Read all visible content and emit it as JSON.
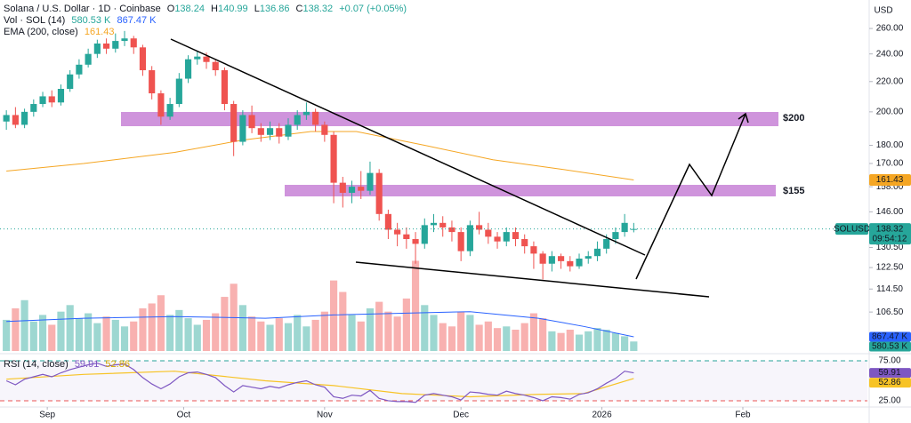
{
  "chart_data": [
    {
      "type": "candlestick",
      "title": "Solana / U.S. Dollar · 1D · Coinbase",
      "axis_label": "USD",
      "symbol": "SOLUSD",
      "countdown": "09:54:12",
      "ohlc_labels": [
        "O",
        "H",
        "L",
        "C"
      ],
      "change": "+0.07 (+0.05%)",
      "up_color": "#26a69a",
      "down_color": "#ef5350",
      "x": [
        3,
        5,
        7,
        9,
        11,
        13,
        15,
        17,
        19,
        21,
        23,
        25,
        27,
        29,
        31,
        33,
        35,
        37,
        39,
        41,
        43,
        45,
        47,
        49,
        51,
        53,
        55,
        57,
        59,
        61,
        63,
        65,
        67,
        69,
        71,
        73,
        75,
        77,
        79,
        81,
        83,
        85,
        87,
        89,
        91,
        93,
        95,
        97,
        99,
        101,
        103,
        105,
        107,
        109,
        111,
        113,
        115,
        117,
        119,
        121,
        123,
        125,
        127,
        129,
        131,
        133,
        135,
        137,
        139,
        141
      ],
      "ohlc": [
        [
          194,
          201,
          189,
          198
        ],
        [
          198,
          203,
          190,
          192
        ],
        [
          192,
          202,
          190,
          200
        ],
        [
          200,
          208,
          197,
          205
        ],
        [
          205,
          213,
          203,
          210
        ],
        [
          210,
          214,
          203,
          206
        ],
        [
          206,
          218,
          204,
          215
        ],
        [
          215,
          228,
          213,
          225
        ],
        [
          225,
          236,
          222,
          232
        ],
        [
          232,
          244,
          230,
          240
        ],
        [
          240,
          251,
          237,
          248
        ],
        [
          248,
          252,
          240,
          244
        ],
        [
          244,
          256,
          241,
          250
        ],
        [
          250,
          258,
          246,
          252
        ],
        [
          252,
          254,
          240,
          245
        ],
        [
          245,
          247,
          224,
          228
        ],
        [
          228,
          231,
          208,
          212
        ],
        [
          212,
          214,
          192,
          197
        ],
        [
          197,
          209,
          195,
          205
        ],
        [
          205,
          226,
          203,
          222
        ],
        [
          222,
          239,
          219,
          236
        ],
        [
          236,
          242,
          232,
          238
        ],
        [
          238,
          241,
          229,
          234
        ],
        [
          234,
          236,
          224,
          228
        ],
        [
          228,
          230,
          201,
          205
        ],
        [
          205,
          207,
          174,
          182
        ],
        [
          182,
          201,
          180,
          198
        ],
        [
          198,
          204,
          187,
          190
        ],
        [
          190,
          193,
          182,
          186
        ],
        [
          186,
          194,
          183,
          190
        ],
        [
          190,
          193,
          181,
          185
        ],
        [
          185,
          196,
          183,
          192
        ],
        [
          192,
          201,
          189,
          198
        ],
        [
          198,
          206,
          195,
          200
        ],
        [
          200,
          202,
          188,
          192
        ],
        [
          192,
          194,
          182,
          186
        ],
        [
          186,
          188,
          150,
          160
        ],
        [
          160,
          163,
          148,
          155
        ],
        [
          155,
          161,
          150,
          158
        ],
        [
          158,
          166,
          152,
          156
        ],
        [
          156,
          171,
          154,
          165
        ],
        [
          165,
          167,
          142,
          145
        ],
        [
          145,
          147,
          134,
          138
        ],
        [
          138,
          141,
          131,
          136
        ],
        [
          136,
          139,
          130,
          134
        ],
        [
          134,
          137,
          124,
          132
        ],
        [
          132,
          143,
          130,
          140
        ],
        [
          140,
          145,
          137,
          141
        ],
        [
          141,
          144,
          135,
          139
        ],
        [
          139,
          142,
          133,
          137
        ],
        [
          137,
          139,
          125,
          129
        ],
        [
          129,
          142,
          127,
          140
        ],
        [
          140,
          146,
          136,
          138
        ],
        [
          138,
          141,
          132,
          135
        ],
        [
          135,
          137,
          130,
          133
        ],
        [
          133,
          139,
          131,
          137
        ],
        [
          137,
          139,
          131,
          134
        ],
        [
          134,
          136,
          128,
          131
        ],
        [
          131,
          133,
          122,
          128
        ],
        [
          128,
          129,
          118,
          124
        ],
        [
          124,
          129,
          121,
          127
        ],
        [
          127,
          128,
          122,
          125
        ],
        [
          125,
          127,
          121,
          123
        ],
        [
          123,
          128,
          122,
          126
        ],
        [
          126,
          129,
          124,
          127
        ],
        [
          127,
          133,
          125,
          130
        ],
        [
          130,
          136,
          128,
          134
        ],
        [
          134,
          139,
          132,
          137
        ],
        [
          137,
          145,
          135,
          141
        ],
        [
          138.24,
          140.99,
          136.86,
          138.32
        ]
      ],
      "xlim": [
        1.6,
        192.4
      ],
      "xticks": [
        {
          "value": 12,
          "label": "Sep"
        },
        {
          "value": 42,
          "label": "Oct"
        },
        {
          "value": 73,
          "label": "Nov"
        },
        {
          "value": 103,
          "label": "Dec"
        },
        {
          "value": 134,
          "label": "2026"
        },
        {
          "value": 165,
          "label": "Feb"
        }
      ],
      "ylim": [
        94.2,
        284.4
      ],
      "log": true,
      "yticks": [
        {
          "value": 260,
          "label": "260.00"
        },
        {
          "value": 240,
          "label": "240.00"
        },
        {
          "value": 220,
          "label": "220.00"
        },
        {
          "value": 200,
          "label": "200.00"
        },
        {
          "value": 180,
          "label": "180.00"
        },
        {
          "value": 170,
          "label": "170.00"
        },
        {
          "value": 158,
          "label": "158.00"
        },
        {
          "value": 146,
          "label": "146.00"
        },
        {
          "value": 130.5,
          "label": "130.50"
        },
        {
          "value": 122.5,
          "label": "122.50"
        },
        {
          "value": 114.5,
          "label": "114.50"
        },
        {
          "value": 106.5,
          "label": "106.50"
        }
      ],
      "ema": {
        "name": "EMA (200, close)",
        "color": "#f5a623",
        "x": [
          3,
          20,
          40,
          55,
          70,
          80,
          95,
          110,
          125,
          141
        ],
        "values": [
          166,
          170,
          176,
          183,
          188,
          188,
          180,
          172,
          167,
          161.43
        ]
      },
      "volume": {
        "name": "Vol · SOL (14)",
        "ylim": [
          0,
          6500000
        ],
        "last_label": "580.53 K",
        "values": [
          1900000,
          2600000,
          3100000,
          1800000,
          2200000,
          1600000,
          2400000,
          2800000,
          2000000,
          2300000,
          1700000,
          2100000,
          1900000,
          1500000,
          1800000,
          2600000,
          2900000,
          3400000,
          2200000,
          2500000,
          2000000,
          1600000,
          1900000,
          2300000,
          3300000,
          4100000,
          2800000,
          2100000,
          1800000,
          1600000,
          2000000,
          1700000,
          2200000,
          1500000,
          1900000,
          2400000,
          4300000,
          3600000,
          2200000,
          1800000,
          2600000,
          3000000,
          2400000,
          2100000,
          3200000,
          5500000,
          2800000,
          2200000,
          1700000,
          1500000,
          2400000,
          2200000,
          1600000,
          1800000,
          1400000,
          1500000,
          1300000,
          1700000,
          2300000,
          2000000,
          1200000,
          1100000,
          1300000,
          1000000,
          1200000,
          1400000,
          1300000,
          1100000,
          900000,
          580530
        ],
        "ma": {
          "color": "#2962ff",
          "last_label": "867.47 K",
          "x": [
            3,
            20,
            40,
            60,
            75,
            90,
            105,
            120,
            130,
            141
          ],
          "values": [
            1800000,
            2000000,
            2100000,
            2000000,
            2200000,
            2300000,
            2400000,
            2000000,
            1500000,
            867470
          ]
        }
      },
      "zones": [
        {
          "label": "$200"
        },
        {
          "label": "$155"
        }
      ]
    },
    {
      "type": "line",
      "title": "RSI (14, close)",
      "x": [
        3,
        5,
        7,
        9,
        11,
        13,
        15,
        17,
        19,
        21,
        23,
        25,
        27,
        29,
        31,
        33,
        35,
        37,
        39,
        41,
        43,
        45,
        47,
        49,
        51,
        53,
        55,
        57,
        59,
        61,
        63,
        65,
        67,
        69,
        71,
        73,
        75,
        77,
        79,
        81,
        83,
        85,
        87,
        89,
        91,
        93,
        95,
        97,
        99,
        101,
        103,
        105,
        107,
        109,
        111,
        113,
        115,
        117,
        119,
        121,
        123,
        125,
        127,
        129,
        131,
        133,
        135,
        137,
        139,
        141
      ],
      "rsi": {
        "color": "#7e57c2",
        "values": [
          50,
          45,
          52,
          55,
          58,
          55,
          60,
          64,
          67,
          70,
          72,
          68,
          70,
          71,
          64,
          54,
          46,
          40,
          46,
          55,
          60,
          61,
          58,
          54,
          44,
          36,
          44,
          42,
          40,
          43,
          41,
          45,
          48,
          50,
          45,
          42,
          30,
          28,
          32,
          31,
          38,
          28,
          25,
          24,
          24,
          23,
          32,
          34,
          32,
          30,
          26,
          36,
          35,
          33,
          32,
          37,
          34,
          32,
          29,
          25,
          30,
          29,
          27,
          33,
          35,
          40,
          47,
          53,
          62,
          59.91
        ]
      },
      "ma": {
        "color": "#f7c325",
        "x": [
          3,
          20,
          40,
          60,
          75,
          90,
          105,
          120,
          130,
          141
        ],
        "values": [
          52,
          58,
          62,
          50,
          44,
          34,
          30,
          33,
          34,
          52.86
        ]
      },
      "ylim": [
        19.4,
        81.7
      ],
      "yticks": [
        {
          "value": 75,
          "label": "75.00"
        },
        {
          "value": 25,
          "label": "25.00"
        }
      ]
    }
  ]
}
